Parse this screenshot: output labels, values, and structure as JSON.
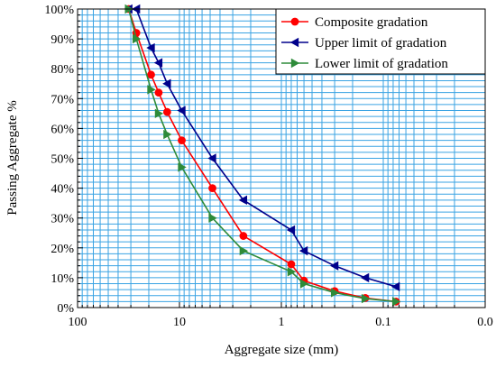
{
  "chart_data": {
    "type": "line",
    "title": "",
    "xlabel": "Aggregate size (mm)",
    "ylabel": "Passing Aggregate %",
    "x_scale": "log",
    "x_reversed": true,
    "xlim": [
      100,
      0.01
    ],
    "ylim": [
      0,
      100
    ],
    "x_ticks": [
      {
        "value": 100,
        "label": "100"
      },
      {
        "value": 10,
        "label": "10"
      },
      {
        "value": 1,
        "label": "1"
      },
      {
        "value": 0.1,
        "label": "0.1"
      },
      {
        "value": 0.01,
        "label": "0.0"
      }
    ],
    "y_ticks": [
      {
        "value": 0,
        "label": "0%"
      },
      {
        "value": 10,
        "label": "10%"
      },
      {
        "value": 20,
        "label": "20%"
      },
      {
        "value": 30,
        "label": "30%"
      },
      {
        "value": 40,
        "label": "40%"
      },
      {
        "value": 50,
        "label": "50%"
      },
      {
        "value": 60,
        "label": "60%"
      },
      {
        "value": 70,
        "label": "70%"
      },
      {
        "value": 80,
        "label": "80%"
      },
      {
        "value": 90,
        "label": "90%"
      },
      {
        "value": 100,
        "label": "100%"
      }
    ],
    "grid": true,
    "grid_color": "#3aa3e3",
    "legend_position": "top-right",
    "series": [
      {
        "name": "Composite gradation",
        "color": "#ff0000",
        "marker": "circle",
        "x": [
          31.5,
          26.5,
          19,
          16,
          13.2,
          9.5,
          4.75,
          2.36,
          0.8,
          0.6,
          0.3,
          0.15,
          0.075
        ],
        "y": [
          100,
          92,
          78,
          72,
          65.5,
          56,
          40,
          24,
          14.5,
          9,
          5.5,
          3.2,
          2
        ]
      },
      {
        "name": "Upper limit of gradation",
        "color": "#00008b",
        "marker": "triangle-left",
        "x": [
          31.5,
          26.5,
          19,
          16,
          13.2,
          9.5,
          4.75,
          2.36,
          0.8,
          0.6,
          0.3,
          0.15,
          0.075
        ],
        "y": [
          100,
          100,
          87,
          82,
          75,
          66,
          50,
          36,
          26,
          19,
          14,
          10,
          7
        ]
      },
      {
        "name": "Lower limit of gradation",
        "color": "#2e8b3a",
        "marker": "triangle-right",
        "x": [
          31.5,
          26.5,
          19,
          16,
          13.2,
          9.5,
          4.75,
          2.36,
          0.8,
          0.6,
          0.3,
          0.15,
          0.075
        ],
        "y": [
          100,
          90,
          73,
          65,
          58,
          47,
          30,
          19,
          12,
          8,
          5,
          3,
          2
        ]
      }
    ]
  }
}
